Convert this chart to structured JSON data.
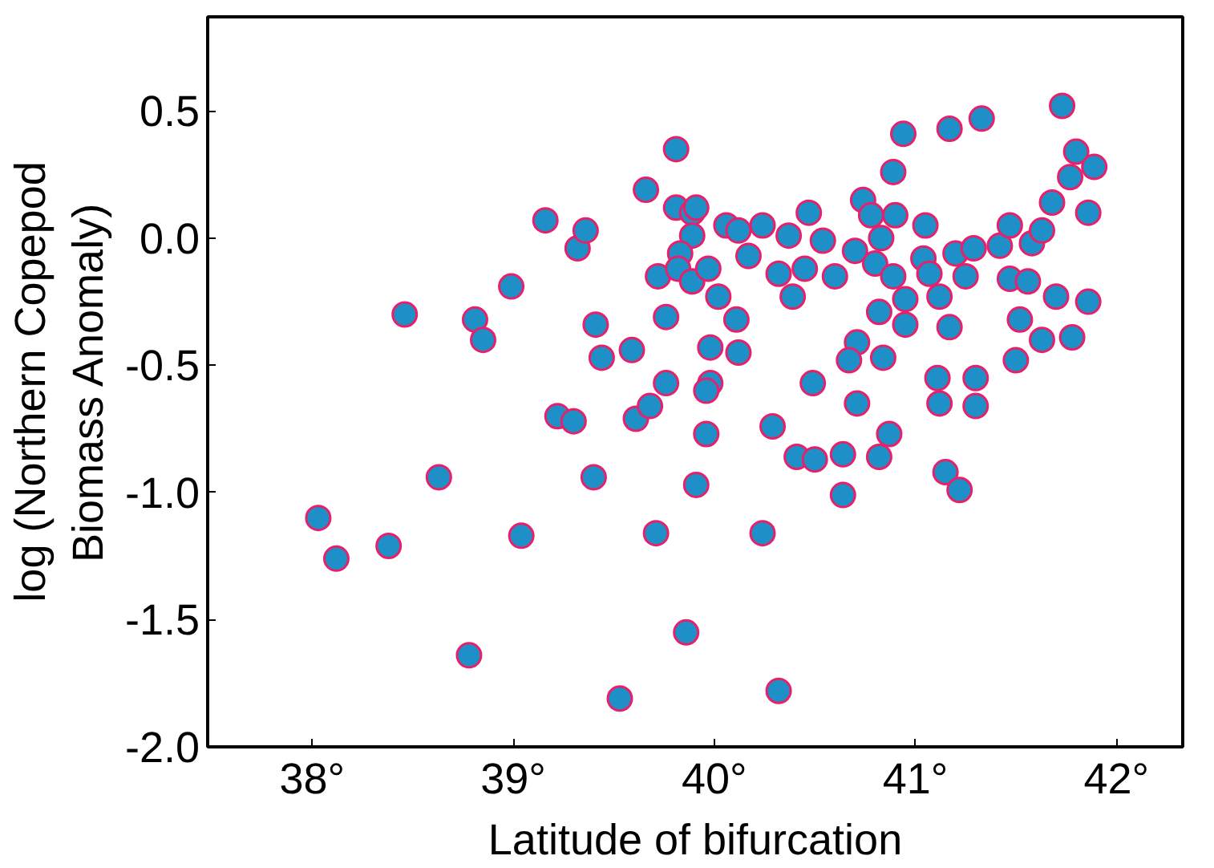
{
  "chart_data": {
    "type": "scatter",
    "xlabel": "Latitude of bifurcation",
    "ylabel": "log (Northern Copepod\nBiomass Anomaly)",
    "xlim": [
      37.48,
      42.33
    ],
    "ylim": [
      -2.0,
      0.87
    ],
    "xticks": [
      {
        "value": 38,
        "label": "38°"
      },
      {
        "value": 39,
        "label": "39°"
      },
      {
        "value": 40,
        "label": "40°"
      },
      {
        "value": 41,
        "label": "41°"
      },
      {
        "value": 42,
        "label": "42°"
      }
    ],
    "yticks": [
      {
        "value": -2.0,
        "label": "-2.0"
      },
      {
        "value": -1.5,
        "label": "-1.5"
      },
      {
        "value": -1.0,
        "label": "-1.0"
      },
      {
        "value": -0.5,
        "label": "-0.5"
      },
      {
        "value": 0.0,
        "label": "0.0"
      },
      {
        "value": 0.5,
        "label": "0.5"
      }
    ],
    "grid": false,
    "marker": "circle",
    "series": [
      {
        "color": "#1f8fc8",
        "x": [
          38.03,
          38.12,
          38.38,
          38.46,
          38.63,
          38.78,
          38.81,
          38.85,
          38.99,
          39.04,
          39.16,
          39.22,
          39.3,
          39.32,
          39.36,
          39.41,
          39.4,
          39.44,
          39.53,
          39.59,
          39.61,
          39.68,
          39.76,
          39.71,
          39.86,
          39.81,
          39.66,
          39.72,
          39.81,
          39.89,
          39.89,
          39.83,
          39.82,
          39.89,
          39.76,
          41.73,
          40.94,
          41.17,
          41.33,
          41.8,
          41.89,
          41.77,
          40.89,
          41.68,
          41.86,
          39.91,
          40.06,
          40.12,
          40.24,
          40.37,
          40.47,
          40.54,
          40.74,
          40.78,
          40.9,
          41.05,
          40.83,
          40.7,
          40.17,
          40.32,
          40.45,
          40.6,
          40.8,
          40.89,
          41.04,
          41.07,
          41.2,
          41.29,
          41.42,
          41.47,
          41.58,
          41.63,
          41.25,
          41.47,
          41.56,
          39.97,
          40.02,
          40.39,
          40.95,
          41.12,
          41.7,
          41.86,
          40.11,
          40.82,
          40.95,
          41.17,
          41.52,
          41.63,
          41.78,
          39.98,
          40.12,
          40.71,
          40.67,
          40.84,
          41.5,
          39.98,
          40.49,
          41.11,
          41.3,
          39.96,
          40.71,
          41.12,
          41.3,
          39.96,
          40.29,
          40.87,
          40.41,
          40.5,
          40.64,
          40.82,
          41.15,
          41.22,
          39.91,
          40.64,
          40.24,
          40.32
        ],
        "values": [
          -1.1,
          -1.26,
          -1.21,
          -0.3,
          -0.94,
          -1.64,
          -0.32,
          -0.4,
          -0.19,
          -1.17,
          0.07,
          -0.7,
          -0.72,
          -0.04,
          0.03,
          -0.34,
          -0.94,
          -0.47,
          -1.81,
          -0.44,
          -0.71,
          -0.66,
          -0.57,
          -1.16,
          -1.55,
          0.35,
          0.19,
          -0.15,
          0.12,
          0.1,
          0.01,
          -0.06,
          -0.12,
          -0.17,
          -0.31,
          0.52,
          0.41,
          0.43,
          0.47,
          0.34,
          0.28,
          0.24,
          0.26,
          0.14,
          0.1,
          0.12,
          0.05,
          0.03,
          0.05,
          0.01,
          0.1,
          -0.01,
          0.15,
          0.09,
          0.09,
          0.05,
          0.0,
          -0.05,
          -0.07,
          -0.14,
          -0.12,
          -0.15,
          -0.1,
          -0.15,
          -0.08,
          -0.14,
          -0.06,
          -0.04,
          -0.03,
          0.05,
          -0.02,
          0.03,
          -0.15,
          -0.16,
          -0.17,
          -0.12,
          -0.23,
          -0.23,
          -0.24,
          -0.23,
          -0.23,
          -0.25,
          -0.32,
          -0.29,
          -0.34,
          -0.35,
          -0.32,
          -0.4,
          -0.39,
          -0.43,
          -0.45,
          -0.41,
          -0.48,
          -0.47,
          -0.48,
          -0.57,
          -0.57,
          -0.55,
          -0.55,
          -0.6,
          -0.65,
          -0.65,
          -0.66,
          -0.77,
          -0.74,
          -0.77,
          -0.86,
          -0.87,
          -0.85,
          -0.86,
          -0.92,
          -0.99,
          -0.97,
          -1.01,
          -1.16,
          -1.78
        ]
      }
    ]
  }
}
